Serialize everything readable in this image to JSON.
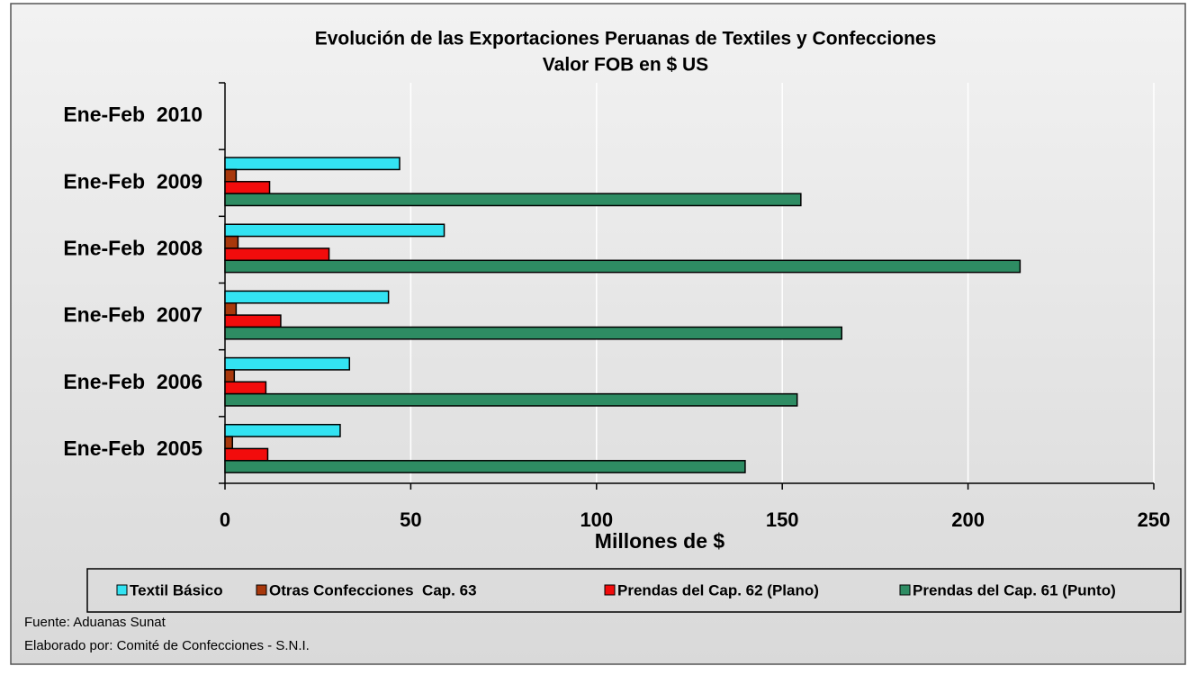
{
  "chart_data": {
    "type": "barh",
    "title": "Evolución de las Exportaciones Peruanas de Textiles y Confecciones",
    "subtitle": "Valor FOB en $ US",
    "xlabel": "Millones de $",
    "categories": [
      "Ene-Feb  2010",
      "Ene-Feb  2009",
      "Ene-Feb  2008",
      "Ene-Feb  2007",
      "Ene-Feb  2006",
      "Ene-Feb  2005"
    ],
    "series": [
      {
        "name": "Textil Básico",
        "color": "#33e3f2",
        "values": [
          null,
          47,
          59,
          44,
          33.5,
          31
        ]
      },
      {
        "name": "Otras Confecciones  Cap. 63",
        "color": "#a8380c",
        "values": [
          null,
          3,
          3.5,
          3,
          2.5,
          2
        ]
      },
      {
        "name": "Prendas del Cap. 62 (Plano)",
        "color": "#f20c0c",
        "values": [
          null,
          12,
          28,
          15,
          11,
          11.5
        ]
      },
      {
        "name": "Prendas del Cap. 61 (Punto)",
        "color": "#2e8c63",
        "values": [
          null,
          155,
          214,
          166,
          154,
          140
        ]
      }
    ],
    "xlim": [
      0,
      250
    ],
    "xticks": [
      0,
      50,
      100,
      150,
      200,
      250
    ],
    "grid": true,
    "legend": "bottom",
    "source": "Fuente: Aduanas Sunat",
    "credit": "Elaborado por: Comité de Confecciones - S.N.I."
  }
}
